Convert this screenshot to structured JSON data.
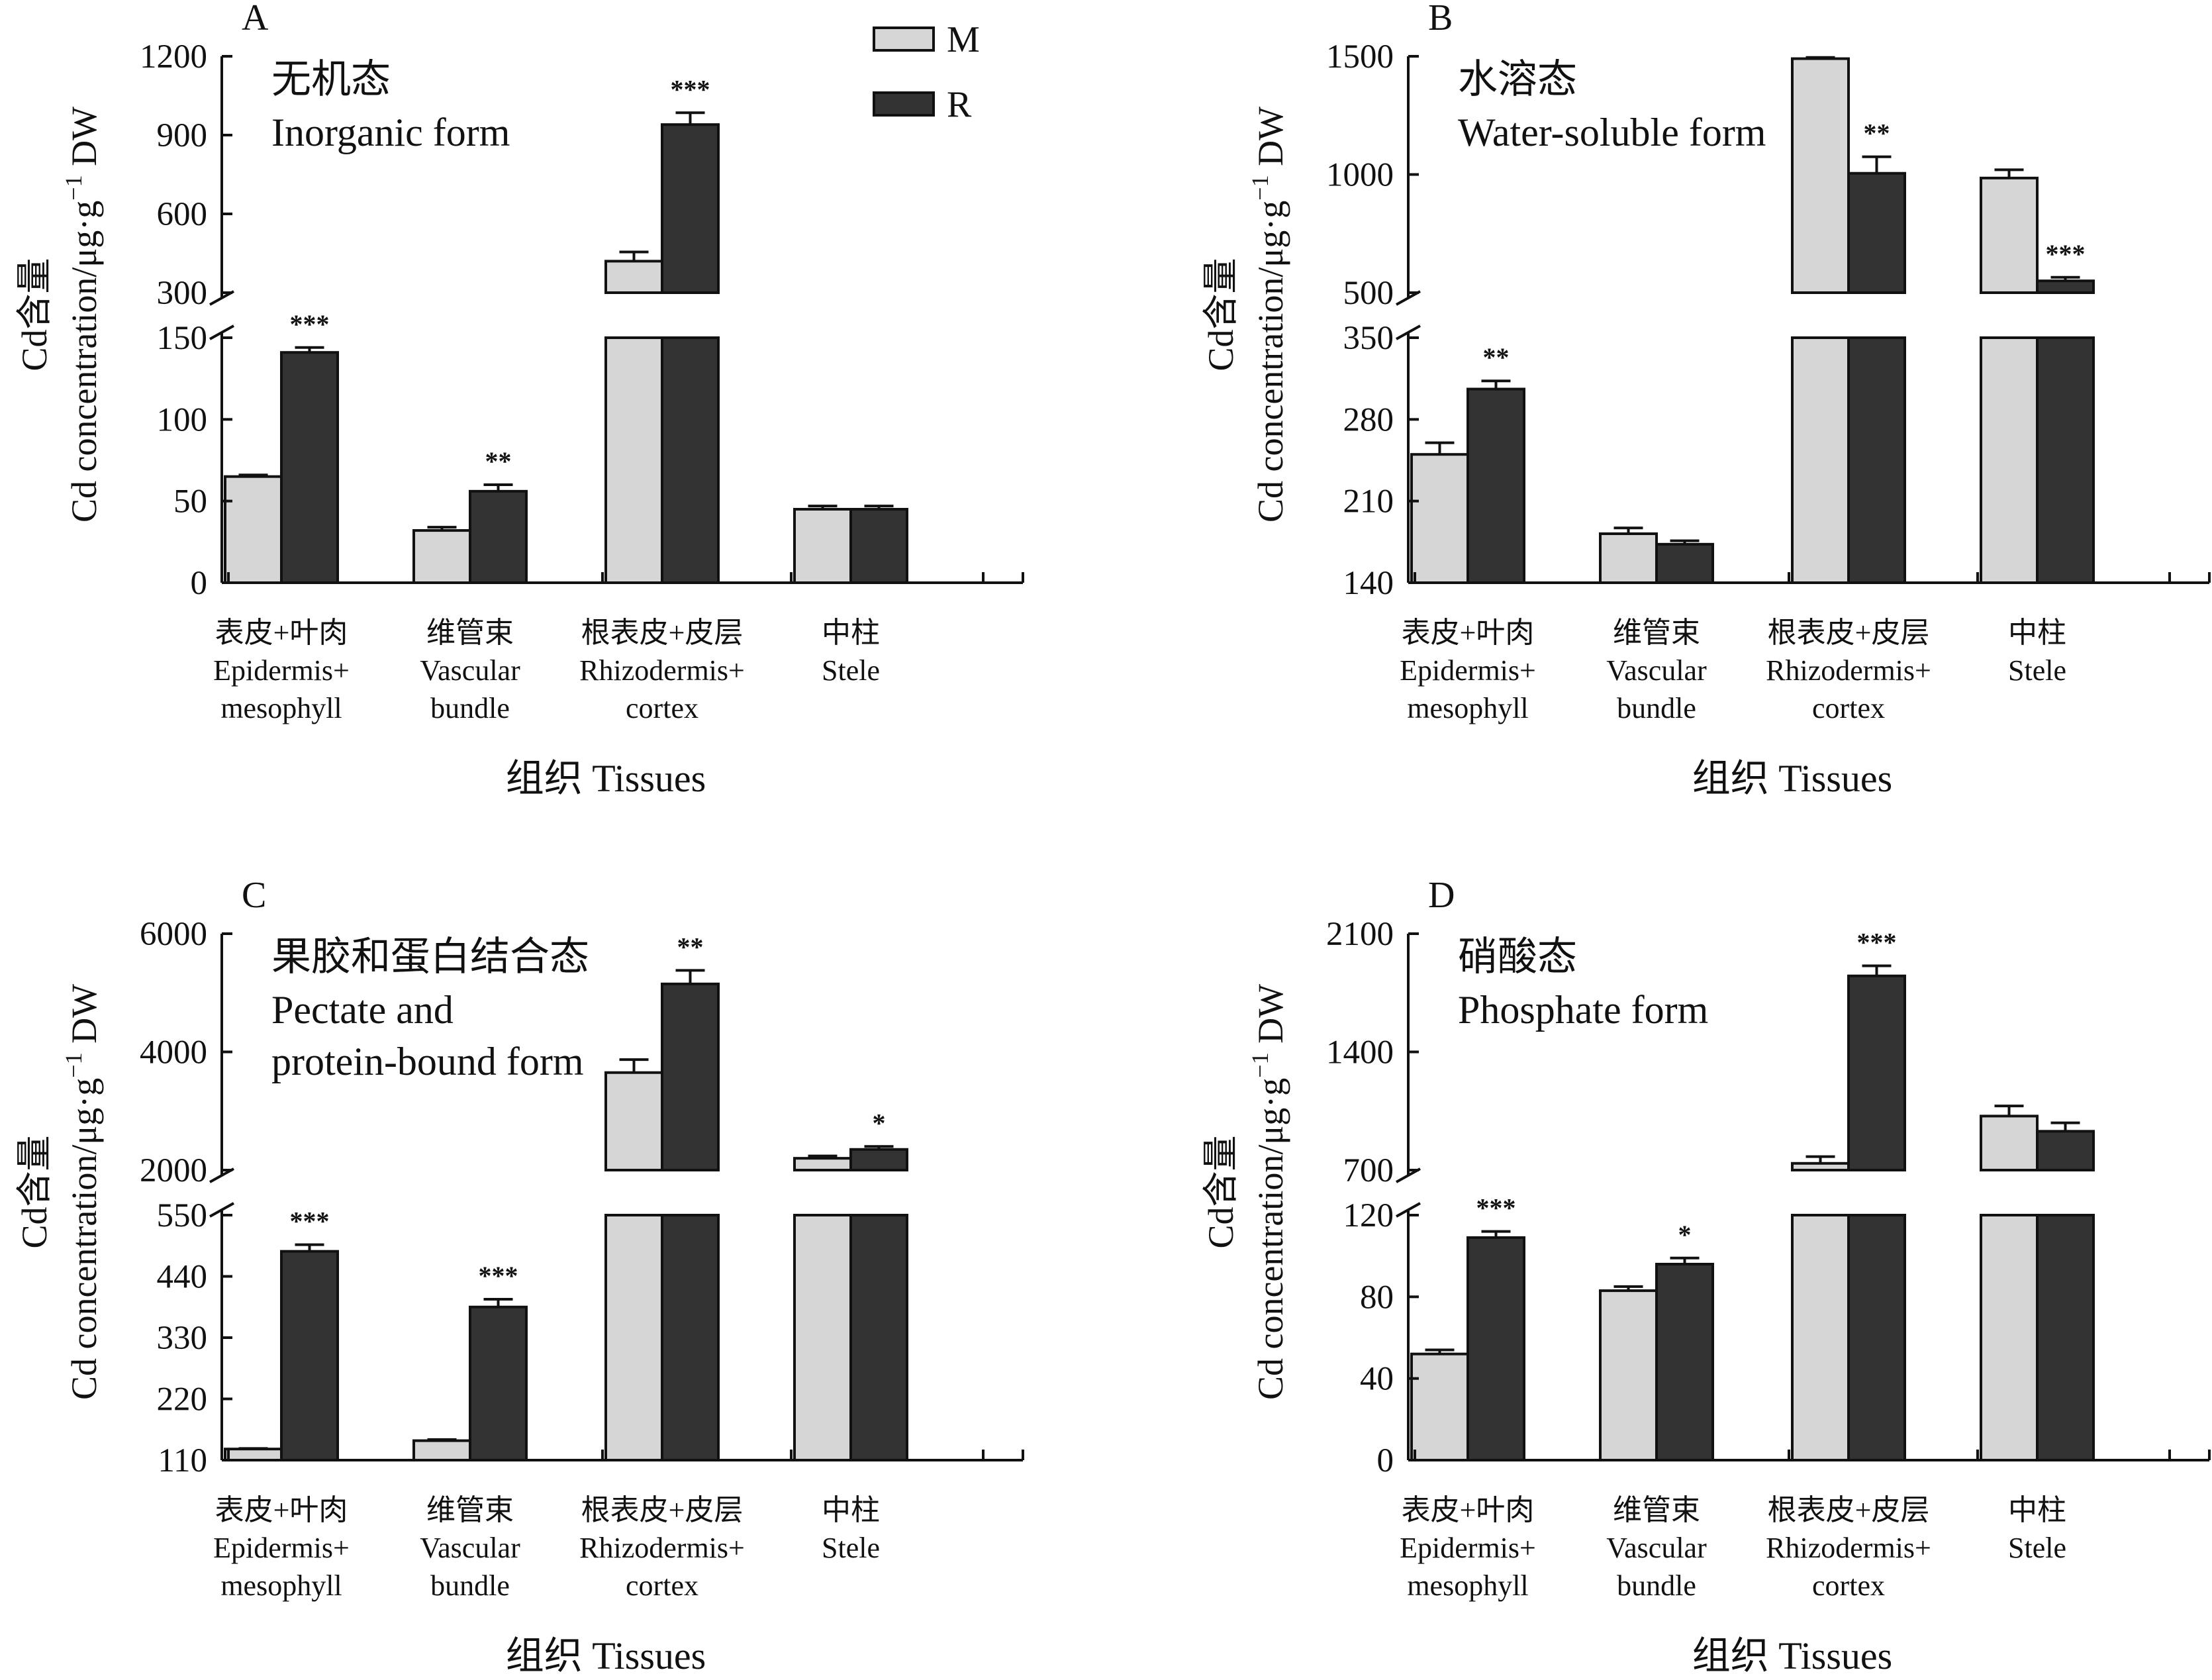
{
  "chart_data": {
    "type": "bar",
    "legend": [
      {
        "name": "M",
        "color": "#d6d6d6"
      },
      {
        "name": "R",
        "color": "#333333"
      }
    ],
    "categories": [
      {
        "cn": "表皮+叶肉",
        "en1": "Epidermis+",
        "en2": "mesophyll"
      },
      {
        "cn": "维管束",
        "en1": "Vascular",
        "en2": "bundle"
      },
      {
        "cn": "根表皮+皮层",
        "en1": "Rhizodermis+",
        "en2": "cortex"
      },
      {
        "cn": "中柱",
        "en1": "Stele",
        "en2": ""
      }
    ],
    "xlabel": "组织 Tissues",
    "ylabel": "Cd含量",
    "ylabel_en": "Cd concentration/μg·g",
    "ylabel_sup": "−1",
    "ylabel_unit": " DW",
    "panels": [
      {
        "letter": "A",
        "title_cn": "无机态",
        "title_en": [
          "Inorganic form"
        ],
        "lower": {
          "range": [
            0,
            150
          ],
          "ticks": [
            0,
            50,
            100,
            150
          ]
        },
        "upper": {
          "range": [
            300,
            1200
          ],
          "ticks": [
            300,
            600,
            900,
            1200
          ]
        },
        "series": [
          {
            "name": "M",
            "values": [
              65,
              32,
              420,
              45
            ],
            "errors": [
              1,
              2,
              35,
              2
            ]
          },
          {
            "name": "R",
            "values": [
              141,
              56,
              940,
              45
            ],
            "errors": [
              3,
              4,
              45,
              2
            ]
          }
        ],
        "significance": [
          "***",
          "**",
          "***",
          ""
        ]
      },
      {
        "letter": "B",
        "title_cn": "水溶态",
        "title_en": [
          "Water-soluble form"
        ],
        "lower": {
          "range": [
            140,
            350
          ],
          "ticks": [
            140,
            210,
            280,
            350
          ]
        },
        "upper": {
          "range": [
            500,
            1500
          ],
          "ticks": [
            500,
            1000,
            1500
          ]
        },
        "series": [
          {
            "name": "M",
            "values": [
              250,
              182,
              1490,
              985
            ],
            "errors": [
              10,
              5,
              5,
              35
            ]
          },
          {
            "name": "R",
            "values": [
              306,
              173,
              1005,
              550
            ],
            "errors": [
              7,
              3,
              70,
              15
            ]
          }
        ],
        "significance": [
          "**",
          "",
          "**",
          "***"
        ]
      },
      {
        "letter": "C",
        "title_cn": "果胶和蛋白结合态",
        "title_en": [
          "Pectate and",
          "protein-bound form"
        ],
        "lower": {
          "range": [
            110,
            550
          ],
          "ticks": [
            110,
            220,
            330,
            440,
            550
          ]
        },
        "upper": {
          "range": [
            2000,
            6000
          ],
          "ticks": [
            2000,
            4000,
            6000
          ]
        },
        "series": [
          {
            "name": "M",
            "values": [
              130,
              145,
              3650,
              2200
            ],
            "errors": [
              1,
              2,
              220,
              40
            ]
          },
          {
            "name": "R",
            "values": [
              485,
              385,
              5150,
              2350
            ],
            "errors": [
              12,
              14,
              230,
              50
            ]
          }
        ],
        "significance": [
          "***",
          "***",
          "**",
          "*"
        ]
      },
      {
        "letter": "D",
        "title_cn": "硝酸态",
        "title_en": [
          "Phosphate form"
        ],
        "lower": {
          "range": [
            0,
            120
          ],
          "ticks": [
            0,
            40,
            80,
            120
          ]
        },
        "upper": {
          "range": [
            700,
            2100
          ],
          "ticks": [
            700,
            1400,
            2100
          ]
        },
        "series": [
          {
            "name": "M",
            "values": [
              52,
              83,
              740,
              1020
            ],
            "errors": [
              2,
              2,
              40,
              60
            ]
          },
          {
            "name": "R",
            "values": [
              109,
              96,
              1850,
              930
            ],
            "errors": [
              3,
              3,
              60,
              50
            ]
          }
        ],
        "significance": [
          "***",
          "*",
          "***",
          ""
        ]
      }
    ]
  }
}
